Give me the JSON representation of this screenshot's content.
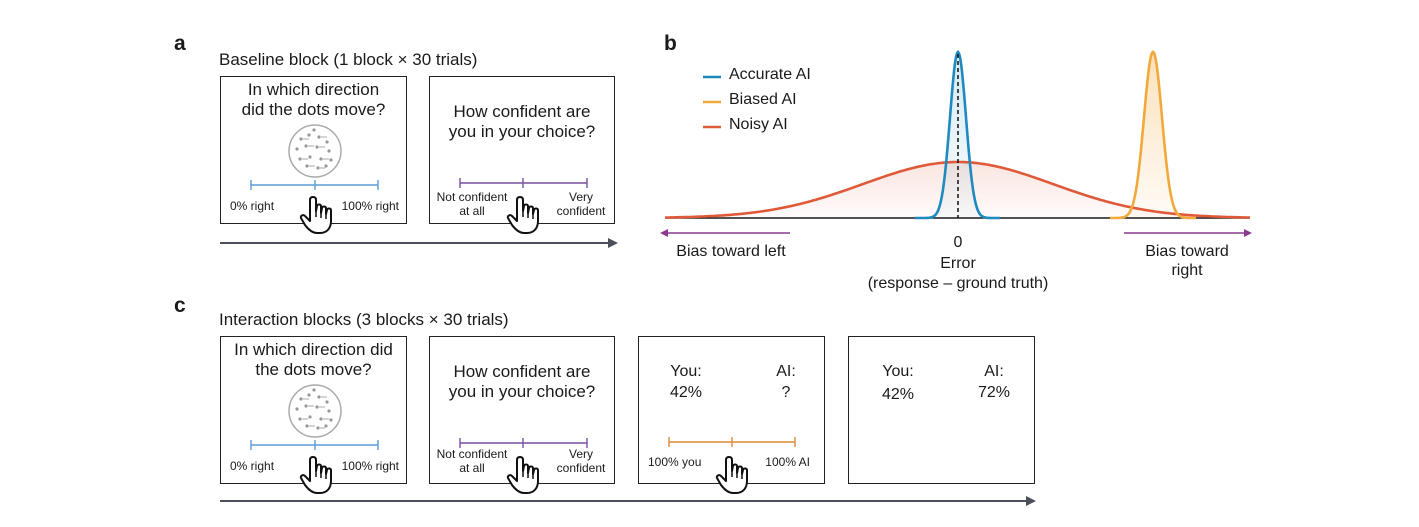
{
  "panel_a": {
    "letter": "a",
    "title": "Baseline block (1 block × 30 trials)",
    "card1": {
      "question": "In which direction did the dots move?",
      "left_label": "0% right",
      "right_label": "100% right"
    },
    "card2": {
      "question": "How confident are you in your choice?",
      "left_label": "Not confident at all",
      "right_label": "Very confident"
    }
  },
  "panel_b": {
    "letter": "b",
    "legend": [
      {
        "label": "Accurate AI",
        "color": "#1f8ac0"
      },
      {
        "label": "Biased AI",
        "color": "#f2a93b"
      },
      {
        "label": "Noisy AI",
        "color": "#e05a3a"
      }
    ],
    "zero_label": "0",
    "xaxis_label": "Error",
    "xaxis_sublabel": "(response – ground truth)",
    "bias_left": "Bias toward left",
    "bias_right": "Bias toward right",
    "arrow_color": "#8a3a8f"
  },
  "panel_c": {
    "letter": "c",
    "title": "Interaction blocks (3 blocks × 30 trials)",
    "card1": {
      "question": "In which direction did the dots move?",
      "left_label": "0% right",
      "right_label": "100% right"
    },
    "card2": {
      "question": "How confident are you in your choice?",
      "left_label": "Not confident at all",
      "right_label": "Very confident"
    },
    "card3": {
      "you_label": "You:",
      "you_value": "42%",
      "ai_label": "AI:",
      "ai_value": "?",
      "left_label": "100% you",
      "right_label": "100% AI"
    },
    "card4": {
      "you_label": "You:",
      "you_value": "42%",
      "ai_label": "AI:",
      "ai_value": "72%"
    }
  },
  "colors": {
    "slider_blue": "#5b9bd5",
    "slider_purple": "#7a4fa0",
    "slider_orange": "#e08a3c",
    "timeline": "#4a4f5a"
  },
  "icons": [
    "dot-patch-icon",
    "pointing-hand-icon",
    "arrow-right-icon"
  ]
}
